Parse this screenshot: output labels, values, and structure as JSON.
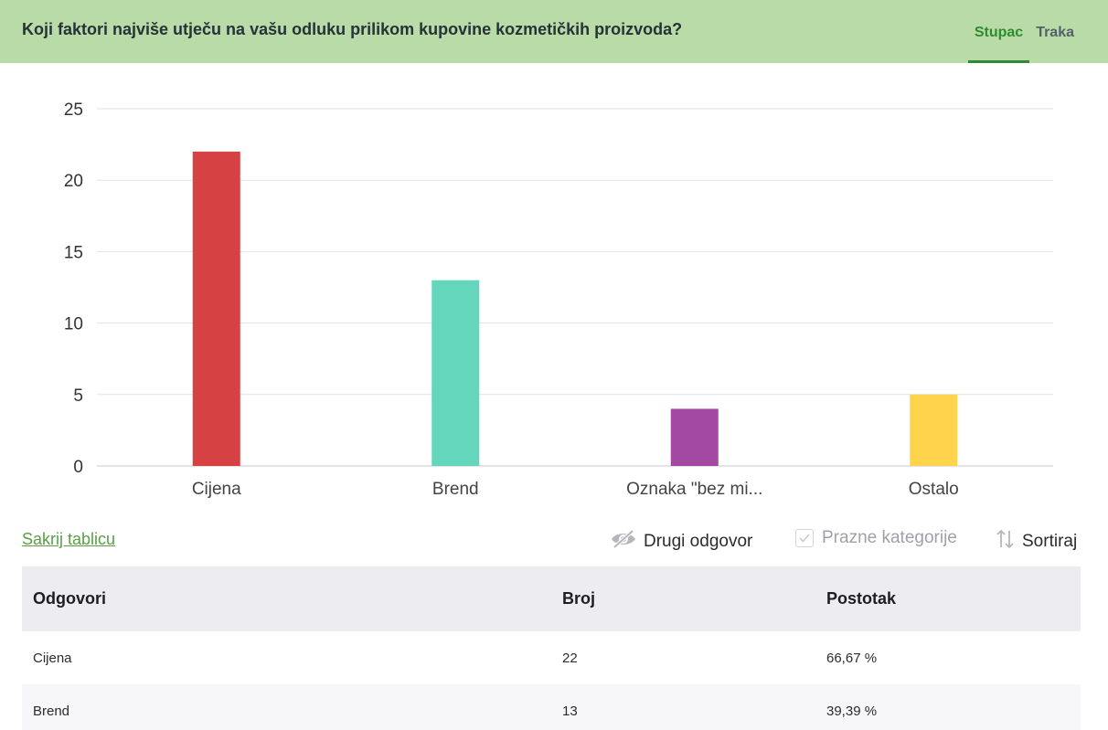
{
  "header": {
    "question": "Koji faktori najviše utječu na vašu odluku prilikom kupovine kozmetičkih proizvoda?",
    "tabs": [
      {
        "label": "Stupac",
        "active": true
      },
      {
        "label": "Traka",
        "active": false
      }
    ]
  },
  "chart_data": {
    "type": "bar",
    "categories": [
      "Cijena",
      "Brend",
      "Oznaka \"bez mi...",
      "Ostalo"
    ],
    "values": [
      22,
      13,
      4,
      5
    ],
    "colors": [
      "#d64143",
      "#64d6bb",
      "#a348a3",
      "#ffd44c"
    ],
    "yticks": [
      0,
      5,
      10,
      15,
      20,
      25
    ],
    "ylim": [
      0,
      25
    ],
    "grid": true
  },
  "controls": {
    "hide_table": "Sakrij tablicu",
    "other_answer": "Drugi odgovor",
    "empty_categories": "Prazne kategorije",
    "sort": "Sortiraj"
  },
  "table": {
    "headers": {
      "answers": "Odgovori",
      "count": "Broj",
      "percent": "Postotak"
    },
    "rows": [
      {
        "answer": "Cijena",
        "count": "22",
        "percent": "66,67 %"
      },
      {
        "answer": "Brend",
        "count": "13",
        "percent": "39,39 %"
      }
    ]
  }
}
